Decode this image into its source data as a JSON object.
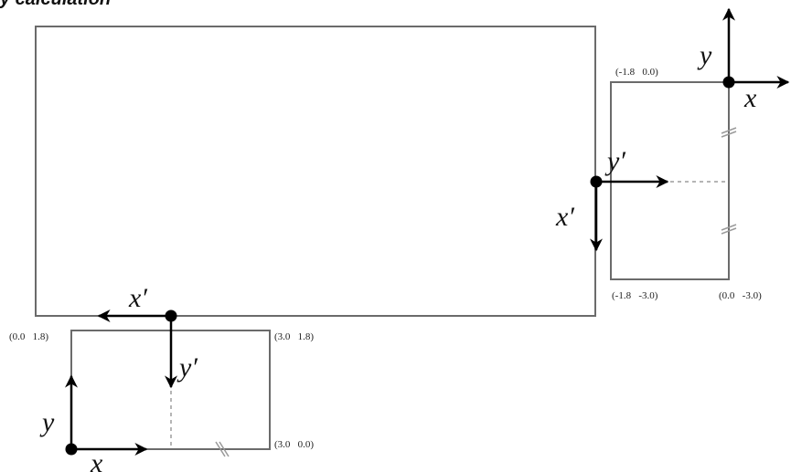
{
  "title": "y calculation",
  "colors": {
    "frame": "#6b6b6b",
    "arrow": "#000000",
    "dash": "#b5b5b5",
    "tick": "#9a9a9a"
  },
  "right_box": {
    "corner_top_left": "(-1.8   0.0)",
    "corner_bottom_left": "(-1.8   -3.0)",
    "corner_bottom_right": "(0.0   -3.0)",
    "axis_y": "y",
    "axis_x": "x",
    "axis_y_prime": "y′",
    "axis_x_prime": "x′"
  },
  "bottom_box": {
    "corner_top_left": "(0.0   1.8)",
    "corner_top_right": "(3.0   1.8)",
    "corner_bottom_right": "(3.0   0.0)",
    "axis_y": "y",
    "axis_x": "x",
    "axis_y_prime": "y′",
    "axis_x_prime": "x′"
  }
}
